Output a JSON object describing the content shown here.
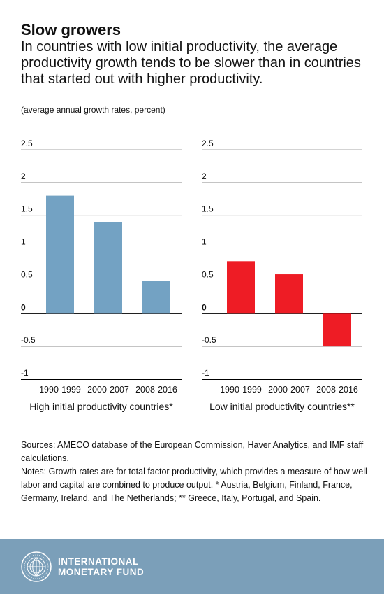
{
  "header": {
    "title": "Slow growers",
    "subtitle": "In countries with low initial productivity, the average productivity growth tends to be slower than in countries that started out with higher productivity.",
    "units": "(average annual growth rates, percent)"
  },
  "chart_data": [
    {
      "type": "bar",
      "title": "High initial productivity countries*",
      "categories": [
        "1990-1999",
        "2000-2007",
        "2008-2016"
      ],
      "values": [
        1.8,
        1.4,
        0.5
      ],
      "ylim": [
        -1,
        2.5
      ],
      "yticks": [
        "2.5",
        "2",
        "1.5",
        "1",
        "0.5",
        "0",
        "-0.5",
        "-1"
      ],
      "color": "#73a2c3",
      "grid": true
    },
    {
      "type": "bar",
      "title": "Low initial productivity countries**",
      "categories": [
        "1990-1999",
        "2000-2007",
        "2008-2016"
      ],
      "values": [
        0.8,
        0.6,
        -0.5
      ],
      "ylim": [
        -1,
        2.5
      ],
      "yticks": [
        "2.5",
        "2",
        "1.5",
        "1",
        "0.5",
        "0",
        "-0.5",
        "-1"
      ],
      "color": "#ee1c25",
      "grid": true
    }
  ],
  "notes": {
    "sources": "Sources: AMECO database of the European Commission, Haver Analytics, and IMF staff calculations.",
    "notes": "Notes: Growth rates are for total factor productivity, which provides a measure of how well labor and capital are combined to produce output. * Austria, Belgium, Finland, France, Germany, Ireland, and The Netherlands; ** Greece, Italy, Portugal, and Spain."
  },
  "footer": {
    "background": "#7b9fb9",
    "logo_icon": "imf-seal-icon",
    "logo_line1": "INTERNATIONAL",
    "logo_line2": "MONETARY FUND"
  }
}
